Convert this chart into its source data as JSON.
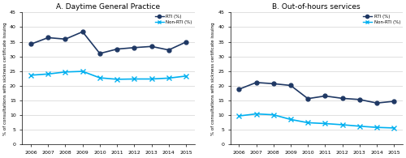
{
  "years": [
    2006,
    2007,
    2008,
    2009,
    2010,
    2011,
    2012,
    2013,
    2014,
    2015
  ],
  "panel_A": {
    "title": "A. Daytime General Practice",
    "RTI": [
      34.2,
      36.4,
      35.9,
      38.4,
      31.0,
      32.5,
      33.0,
      33.4,
      32.2,
      34.9
    ],
    "NonRTI": [
      23.6,
      24.0,
      24.7,
      24.9,
      22.7,
      22.2,
      22.3,
      22.3,
      22.6,
      23.3
    ],
    "ylim": [
      0,
      45
    ],
    "yticks": [
      0,
      5,
      10,
      15,
      20,
      25,
      30,
      35,
      40,
      45
    ]
  },
  "panel_B": {
    "title": "B. Out-of-hours services",
    "RTI": [
      18.8,
      21.1,
      20.7,
      20.1,
      15.6,
      16.5,
      15.7,
      15.3,
      14.1,
      14.7
    ],
    "NonRTI": [
      9.7,
      10.4,
      10.1,
      8.5,
      7.4,
      7.1,
      6.7,
      6.2,
      5.8,
      5.6
    ],
    "ylim": [
      0,
      45
    ],
    "yticks": [
      0,
      5,
      10,
      15,
      20,
      25,
      30,
      35,
      40,
      45
    ]
  },
  "RTI_color": "#1f3864",
  "NonRTI_color": "#00b0f0",
  "RTI_label": "RTI (%)",
  "NonRTI_label": "Non-RTI (%)",
  "ylabel": "% of consultations with sickness certificate issuing",
  "legend_RTI_values_A": [
    34.2,
    36.4,
    35.9,
    38.4,
    31.0,
    32.5,
    33.0,
    33.4,
    32.2,
    34.9
  ],
  "legend_NonRTI_values_A": [
    23.6,
    24.0,
    24.7,
    24.9,
    22.7,
    22.2,
    22.3,
    22.3,
    22.6,
    23.3
  ],
  "legend_RTI_values_B": [
    18.8,
    21.1,
    20.7,
    20.1,
    15.6,
    16.5,
    15.7,
    15.3,
    14.1,
    14.7
  ],
  "legend_NonRTI_values_B": [
    9.7,
    10.4,
    10.1,
    8.5,
    7.4,
    7.1,
    6.7,
    6.2,
    5.8,
    5.6
  ]
}
